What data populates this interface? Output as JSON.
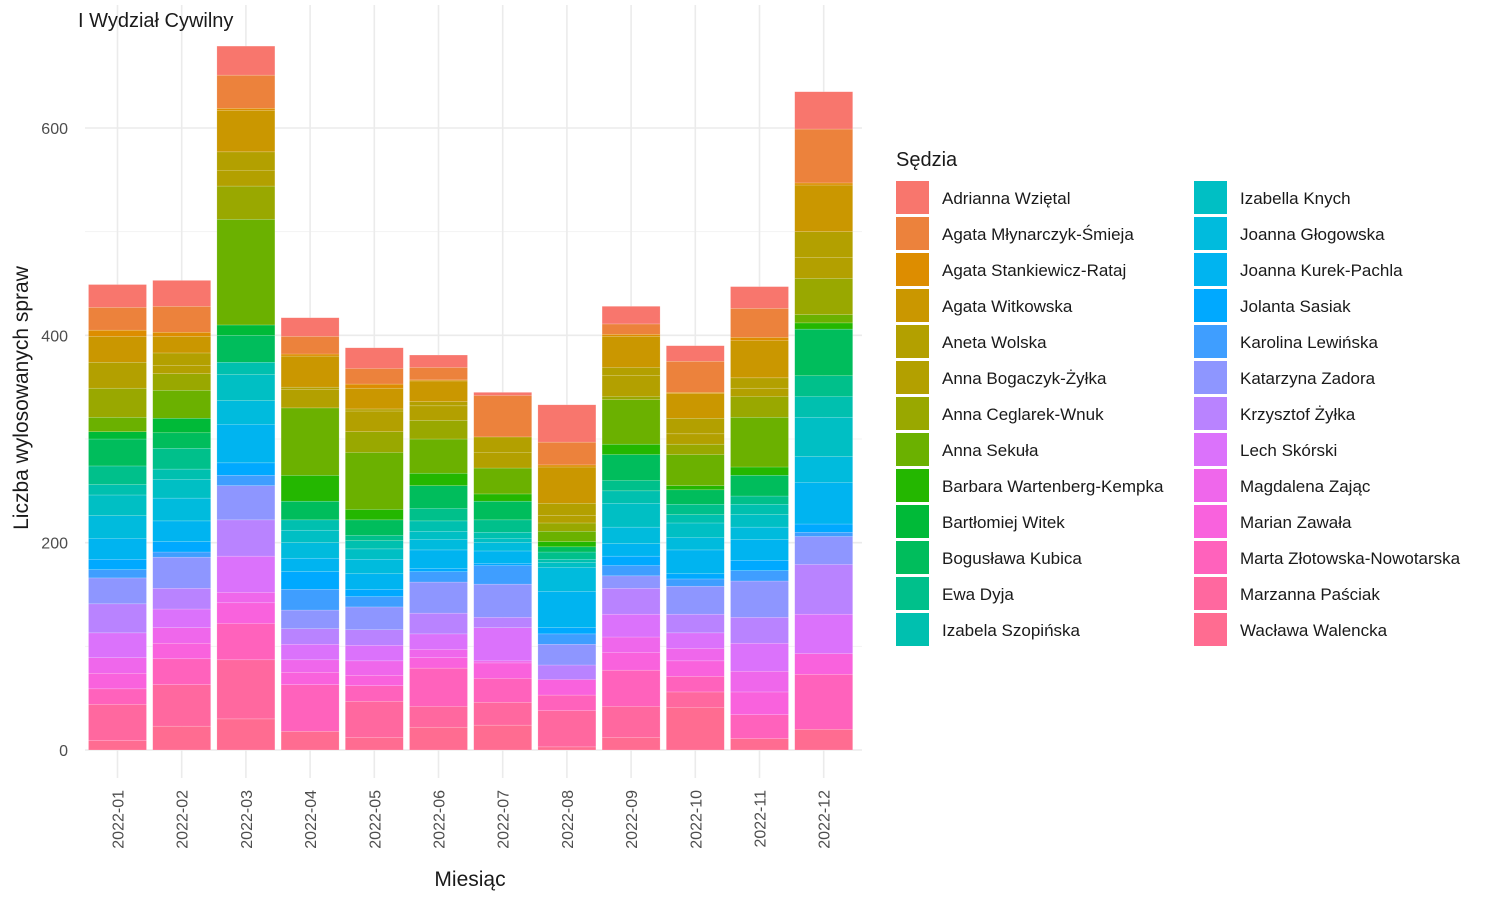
{
  "chart_data": {
    "type": "bar",
    "stacked": true,
    "title": "I Wydział Cywilny",
    "xlabel": "Miesiąc",
    "ylabel": "Liczba wylosowanych spraw",
    "ylim": [
      -25,
      700
    ],
    "y_ticks": [
      0,
      200,
      400,
      600
    ],
    "grid": true,
    "legend_title": "Sędzia",
    "legend_position": "right",
    "categories": [
      "2022-01",
      "2022-02",
      "2022-03",
      "2022-04",
      "2022-05",
      "2022-06",
      "2022-07",
      "2022-08",
      "2022-09",
      "2022-10",
      "2022-11",
      "2022-12"
    ],
    "series": [
      {
        "name": "Adrianna Wziętal",
        "color": "#F8766D",
        "values": [
          22,
          25,
          28,
          18,
          20,
          12,
          3,
          36,
          17,
          15,
          21,
          36
        ]
      },
      {
        "name": "Agata Młynarczyk-Śmieja",
        "color": "#EC823C",
        "values": [
          22,
          25,
          32,
          17,
          15,
          12,
          40,
          22,
          10,
          30,
          28,
          52
        ]
      },
      {
        "name": "Agata Stankiewicz-Rataj",
        "color": "#DD8D00",
        "values": [
          6,
          4,
          2,
          2,
          4,
          1,
          0,
          2,
          2,
          1,
          3,
          2
        ]
      },
      {
        "name": "Agata Witkowska",
        "color": "#CA9700",
        "values": [
          25,
          16,
          40,
          30,
          20,
          20,
          0,
          35,
          30,
          24,
          36,
          45
        ]
      },
      {
        "name": "Aneta Wolska",
        "color": "#B3A000",
        "values": [
          25,
          12,
          18,
          2,
          2,
          4,
          15,
          12,
          8,
          15,
          10,
          25
        ]
      },
      {
        "name": "Anna Bogaczyk-Żyłka",
        "color": "#B3A000",
        "values": [
          0,
          8,
          15,
          18,
          20,
          14,
          15,
          7,
          20,
          10,
          8,
          20
        ]
      },
      {
        "name": "Anna Ceglarek-Wnuk",
        "color": "#99A800",
        "values": [
          28,
          16,
          32,
          0,
          20,
          18,
          0,
          8,
          3,
          10,
          20,
          35
        ]
      },
      {
        "name": "Anna Sekuła",
        "color": "#6BB100",
        "values": [
          14,
          27,
          102,
          65,
          55,
          33,
          25,
          10,
          43,
          30,
          48,
          8
        ]
      },
      {
        "name": "Barbara Wartenberg-Kempka",
        "color": "#24B700",
        "values": [
          0,
          0,
          0,
          25,
          10,
          12,
          7,
          5,
          10,
          4,
          8,
          6
        ]
      },
      {
        "name": "Bartłomiej Witek",
        "color": "#00BA38",
        "values": [
          7,
          14,
          10,
          0,
          0,
          0,
          0,
          0,
          0,
          0,
          0,
          0
        ]
      },
      {
        "name": "Bogusława Kubica",
        "color": "#00BD5C",
        "values": [
          26,
          15,
          26,
          18,
          15,
          22,
          18,
          5,
          25,
          14,
          20,
          45
        ]
      },
      {
        "name": "Ewa Dyja",
        "color": "#00C08B",
        "values": [
          18,
          20,
          0,
          0,
          5,
          12,
          12,
          7,
          10,
          10,
          8,
          20
        ]
      },
      {
        "name": "Izabela Szopińska",
        "color": "#00C0AF",
        "values": [
          10,
          10,
          12,
          10,
          8,
          10,
          6,
          3,
          12,
          8,
          10,
          20
        ]
      },
      {
        "name": "Izabella Knych",
        "color": "#00BFC4",
        "values": [
          20,
          18,
          25,
          12,
          10,
          8,
          4,
          5,
          23,
          14,
          12,
          38
        ]
      },
      {
        "name": "Joanna Głogowska",
        "color": "#00BBDD",
        "values": [
          22,
          22,
          23,
          15,
          14,
          10,
          8,
          23,
          16,
          12,
          12,
          25
        ]
      },
      {
        "name": "Joanna Kurek-Pachla",
        "color": "#00B4F0",
        "values": [
          20,
          20,
          37,
          13,
          15,
          18,
          12,
          35,
          12,
          23,
          20,
          40
        ]
      },
      {
        "name": "Jolanta Sasiak",
        "color": "#00A9FF",
        "values": [
          10,
          10,
          12,
          17,
          7,
          3,
          2,
          6,
          9,
          5,
          10,
          8
        ]
      },
      {
        "name": "Karolina Lewińska",
        "color": "#3F9EFF",
        "values": [
          8,
          5,
          10,
          20,
          10,
          10,
          18,
          10,
          10,
          7,
          10,
          4
        ]
      },
      {
        "name": "Katarzyna Zadora",
        "color": "#8E96FF",
        "values": [
          25,
          30,
          33,
          18,
          22,
          30,
          32,
          20,
          12,
          27,
          35,
          27
        ]
      },
      {
        "name": "Krzysztof Żyłka",
        "color": "#B983FF",
        "values": [
          28,
          20,
          35,
          15,
          15,
          20,
          10,
          14,
          25,
          18,
          25,
          48
        ]
      },
      {
        "name": "Lech Skórski",
        "color": "#DB72FB",
        "values": [
          24,
          18,
          35,
          15,
          15,
          15,
          32,
          0,
          22,
          15,
          27,
          38
        ]
      },
      {
        "name": "Magdalena Zając",
        "color": "#EF67EB",
        "values": [
          15,
          15,
          10,
          12,
          14,
          8,
          2,
          0,
          15,
          12,
          20,
          0
        ]
      },
      {
        "name": "Marian Zawała",
        "color": "#F962DD",
        "values": [
          15,
          15,
          20,
          12,
          10,
          10,
          15,
          15,
          17,
          15,
          22,
          20
        ]
      },
      {
        "name": "Marta Złotowska-Nowotarska",
        "color": "#FF62BC",
        "values": [
          15,
          25,
          35,
          45,
          15,
          37,
          23,
          15,
          35,
          15,
          23,
          53
        ]
      },
      {
        "name": "Marzanna Paściak",
        "color": "#FF689F",
        "values": [
          35,
          40,
          57,
          0,
          35,
          20,
          22,
          35,
          30,
          15,
          0,
          0
        ]
      },
      {
        "name": "Wacława Walencka",
        "color": "#FF6C91",
        "values": [
          9,
          23,
          30,
          18,
          12,
          22,
          24,
          3,
          12,
          41,
          11,
          20
        ]
      }
    ]
  }
}
